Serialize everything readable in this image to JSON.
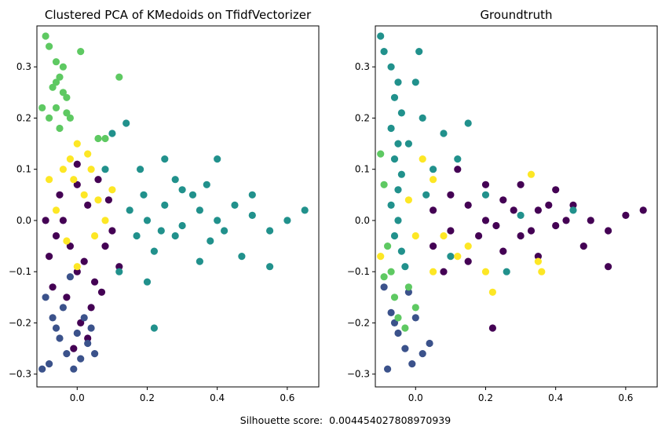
{
  "figure": {
    "footer_label": "Silhouette score:",
    "footer_value": "0.004454027808970939"
  },
  "colors": {
    "purple": "#440154",
    "blue": "#3b528b",
    "teal": "#21918c",
    "green": "#5ec962",
    "yellow": "#fde725"
  },
  "chart_data": [
    {
      "type": "scatter",
      "title": "Clustered PCA of KMedoids on TfidfVectorizer",
      "xlabel": "",
      "ylabel": "",
      "xlim": [
        -0.115,
        0.69
      ],
      "ylim": [
        -0.325,
        0.38
      ],
      "xticks": [
        "0.0",
        "0.2",
        "0.4",
        "0.6"
      ],
      "yticks": [
        "0.3",
        "0.2",
        "0.1",
        "0.0",
        "−0.1",
        "−0.2",
        "−0.3"
      ],
      "xtick_values": [
        0.0,
        0.2,
        0.4,
        0.6
      ],
      "ytick_values": [
        0.3,
        0.2,
        0.1,
        0.0,
        -0.1,
        -0.2,
        -0.3
      ],
      "grid": false,
      "legend": "none",
      "series": [
        {
          "color": "purple",
          "points": [
            [
              -0.08,
              -0.07
            ],
            [
              -0.06,
              -0.03
            ],
            [
              -0.04,
              0.0
            ],
            [
              -0.02,
              -0.05
            ],
            [
              0.0,
              -0.1
            ],
            [
              0.02,
              -0.08
            ],
            [
              0.05,
              -0.12
            ],
            [
              0.08,
              -0.05
            ],
            [
              0.1,
              -0.02
            ],
            [
              -0.05,
              0.05
            ],
            [
              0.0,
              0.07
            ],
            [
              0.03,
              0.03
            ],
            [
              -0.07,
              -0.13
            ],
            [
              -0.03,
              -0.15
            ],
            [
              0.01,
              -0.2
            ],
            [
              0.04,
              -0.17
            ],
            [
              0.07,
              -0.14
            ],
            [
              0.12,
              -0.09
            ],
            [
              -0.01,
              -0.25
            ],
            [
              0.03,
              -0.23
            ],
            [
              0.0,
              0.11
            ],
            [
              0.06,
              0.08
            ],
            [
              -0.09,
              0.0
            ],
            [
              0.09,
              0.04
            ]
          ]
        },
        {
          "color": "blue",
          "points": [
            [
              -0.09,
              -0.15
            ],
            [
              -0.07,
              -0.19
            ],
            [
              -0.05,
              -0.23
            ],
            [
              -0.03,
              -0.26
            ],
            [
              -0.01,
              -0.29
            ],
            [
              0.01,
              -0.27
            ],
            [
              0.03,
              -0.24
            ],
            [
              -0.08,
              -0.28
            ],
            [
              -0.06,
              -0.21
            ],
            [
              -0.04,
              -0.17
            ],
            [
              0.0,
              -0.22
            ],
            [
              0.02,
              -0.19
            ],
            [
              0.04,
              -0.21
            ],
            [
              -0.02,
              -0.11
            ],
            [
              0.05,
              -0.26
            ],
            [
              -0.1,
              -0.29
            ]
          ]
        },
        {
          "color": "teal",
          "points": [
            [
              0.15,
              0.02
            ],
            [
              0.2,
              0.0
            ],
            [
              0.25,
              0.03
            ],
            [
              0.3,
              -0.01
            ],
            [
              0.35,
              0.02
            ],
            [
              0.4,
              0.0
            ],
            [
              0.45,
              0.03
            ],
            [
              0.5,
              0.01
            ],
            [
              0.55,
              -0.02
            ],
            [
              0.6,
              0.0
            ],
            [
              0.65,
              0.02
            ],
            [
              0.22,
              -0.06
            ],
            [
              0.28,
              0.08
            ],
            [
              0.33,
              0.05
            ],
            [
              0.38,
              -0.04
            ],
            [
              0.18,
              0.1
            ],
            [
              0.25,
              0.12
            ],
            [
              0.4,
              0.12
            ],
            [
              0.14,
              0.19
            ],
            [
              0.1,
              0.17
            ],
            [
              0.12,
              -0.1
            ],
            [
              0.2,
              -0.12
            ],
            [
              0.22,
              -0.21
            ],
            [
              0.35,
              -0.08
            ],
            [
              0.47,
              -0.07
            ],
            [
              0.55,
              -0.09
            ],
            [
              0.08,
              0.1
            ],
            [
              0.28,
              -0.03
            ],
            [
              0.17,
              -0.03
            ],
            [
              0.3,
              0.06
            ],
            [
              0.24,
              -0.02
            ],
            [
              0.19,
              0.05
            ],
            [
              0.42,
              -0.02
            ],
            [
              0.5,
              0.05
            ],
            [
              0.37,
              0.07
            ]
          ]
        },
        {
          "color": "green",
          "points": [
            [
              -0.09,
              0.36
            ],
            [
              -0.08,
              0.34
            ],
            [
              -0.06,
              0.31
            ],
            [
              -0.05,
              0.28
            ],
            [
              -0.07,
              0.26
            ],
            [
              -0.04,
              0.3
            ],
            [
              -0.06,
              0.22
            ],
            [
              -0.03,
              0.24
            ],
            [
              -0.08,
              0.2
            ],
            [
              -0.05,
              0.18
            ],
            [
              -0.02,
              0.2
            ],
            [
              0.01,
              0.33
            ],
            [
              0.12,
              0.28
            ],
            [
              0.06,
              0.16
            ],
            [
              -0.1,
              0.22
            ],
            [
              -0.04,
              0.25
            ],
            [
              -0.06,
              0.27
            ],
            [
              -0.03,
              0.21
            ],
            [
              0.08,
              0.16
            ]
          ]
        },
        {
          "color": "yellow",
          "points": [
            [
              -0.04,
              0.1
            ],
            [
              -0.02,
              0.12
            ],
            [
              0.0,
              0.15
            ],
            [
              0.02,
              0.05
            ],
            [
              -0.06,
              0.02
            ],
            [
              -0.08,
              0.08
            ],
            [
              0.04,
              0.1
            ],
            [
              0.06,
              0.04
            ],
            [
              -0.03,
              -0.04
            ],
            [
              0.05,
              -0.03
            ],
            [
              0.08,
              0.0
            ],
            [
              -0.01,
              0.08
            ],
            [
              0.0,
              -0.09
            ],
            [
              0.03,
              0.13
            ],
            [
              0.1,
              0.06
            ]
          ]
        }
      ]
    },
    {
      "type": "scatter",
      "title": "Groundtruth",
      "xlabel": "",
      "ylabel": "",
      "xlim": [
        -0.115,
        0.69
      ],
      "ylim": [
        -0.325,
        0.38
      ],
      "xticks": [
        "0.0",
        "0.2",
        "0.4",
        "0.6"
      ],
      "yticks": [
        "0.3",
        "0.2",
        "0.1",
        "0.0",
        "−0.1",
        "−0.2",
        "−0.3"
      ],
      "xtick_values": [
        0.0,
        0.2,
        0.4,
        0.6
      ],
      "ytick_values": [
        0.3,
        0.2,
        0.1,
        0.0,
        -0.1,
        -0.2,
        -0.3
      ],
      "grid": false,
      "legend": "none",
      "series": [
        {
          "color": "purple",
          "points": [
            [
              0.05,
              0.02
            ],
            [
              0.1,
              -0.02
            ],
            [
              0.15,
              0.03
            ],
            [
              0.2,
              0.0
            ],
            [
              0.25,
              0.04
            ],
            [
              0.3,
              -0.03
            ],
            [
              0.35,
              0.02
            ],
            [
              0.4,
              -0.01
            ],
            [
              0.45,
              0.03
            ],
            [
              0.5,
              0.0
            ],
            [
              0.55,
              -0.02
            ],
            [
              0.6,
              0.01
            ],
            [
              0.65,
              0.02
            ],
            [
              0.2,
              0.07
            ],
            [
              0.3,
              0.07
            ],
            [
              0.4,
              0.06
            ],
            [
              0.15,
              -0.08
            ],
            [
              0.25,
              -0.06
            ],
            [
              0.35,
              -0.07
            ],
            [
              0.22,
              -0.21
            ],
            [
              0.12,
              0.1
            ],
            [
              0.08,
              -0.1
            ],
            [
              0.48,
              -0.05
            ],
            [
              0.55,
              -0.09
            ],
            [
              0.28,
              0.02
            ],
            [
              0.18,
              -0.03
            ],
            [
              0.38,
              0.03
            ],
            [
              0.1,
              0.05
            ],
            [
              0.05,
              -0.05
            ],
            [
              0.33,
              -0.02
            ],
            [
              0.43,
              0.0
            ],
            [
              0.23,
              -0.01
            ]
          ]
        },
        {
          "color": "blue",
          "points": [
            [
              -0.09,
              -0.13
            ],
            [
              -0.07,
              -0.18
            ],
            [
              -0.05,
              -0.22
            ],
            [
              -0.03,
              -0.25
            ],
            [
              -0.01,
              -0.28
            ],
            [
              0.02,
              -0.26
            ],
            [
              -0.08,
              -0.29
            ],
            [
              -0.06,
              -0.2
            ],
            [
              0.04,
              -0.24
            ],
            [
              0.0,
              -0.19
            ],
            [
              -0.02,
              -0.14
            ]
          ]
        },
        {
          "color": "teal",
          "points": [
            [
              -0.1,
              0.36
            ],
            [
              -0.09,
              0.33
            ],
            [
              -0.07,
              0.3
            ],
            [
              -0.05,
              0.27
            ],
            [
              -0.06,
              0.24
            ],
            [
              -0.04,
              0.21
            ],
            [
              -0.07,
              0.18
            ],
            [
              -0.05,
              0.15
            ],
            [
              -0.06,
              0.12
            ],
            [
              -0.04,
              0.09
            ],
            [
              -0.05,
              0.06
            ],
            [
              -0.07,
              0.03
            ],
            [
              -0.05,
              0.0
            ],
            [
              -0.06,
              -0.03
            ],
            [
              -0.04,
              -0.06
            ],
            [
              -0.03,
              -0.09
            ],
            [
              0.01,
              0.33
            ],
            [
              0.02,
              0.2
            ],
            [
              0.08,
              0.17
            ],
            [
              0.15,
              0.19
            ],
            [
              0.12,
              0.12
            ],
            [
              0.05,
              0.1
            ],
            [
              0.1,
              -0.07
            ],
            [
              0.2,
              0.05
            ],
            [
              0.3,
              0.01
            ],
            [
              0.26,
              -0.1
            ],
            [
              0.45,
              0.02
            ],
            [
              0.0,
              0.27
            ],
            [
              -0.02,
              0.15
            ],
            [
              0.03,
              0.05
            ]
          ]
        },
        {
          "color": "green",
          "points": [
            [
              -0.1,
              0.13
            ],
            [
              -0.09,
              0.07
            ],
            [
              -0.08,
              -0.05
            ],
            [
              -0.07,
              -0.1
            ],
            [
              -0.06,
              -0.15
            ],
            [
              -0.05,
              -0.19
            ],
            [
              -0.03,
              -0.21
            ],
            [
              -0.02,
              -0.13
            ],
            [
              0.0,
              -0.17
            ],
            [
              -0.09,
              -0.11
            ]
          ]
        },
        {
          "color": "yellow",
          "points": [
            [
              0.02,
              0.12
            ],
            [
              0.05,
              0.08
            ],
            [
              -0.02,
              0.04
            ],
            [
              0.08,
              -0.03
            ],
            [
              0.12,
              -0.07
            ],
            [
              0.15,
              -0.05
            ],
            [
              0.2,
              -0.1
            ],
            [
              0.22,
              -0.14
            ],
            [
              0.33,
              0.09
            ],
            [
              0.35,
              -0.08
            ],
            [
              0.05,
              -0.1
            ],
            [
              0.0,
              -0.03
            ],
            [
              -0.1,
              -0.07
            ],
            [
              0.36,
              -0.1
            ]
          ]
        }
      ]
    }
  ]
}
